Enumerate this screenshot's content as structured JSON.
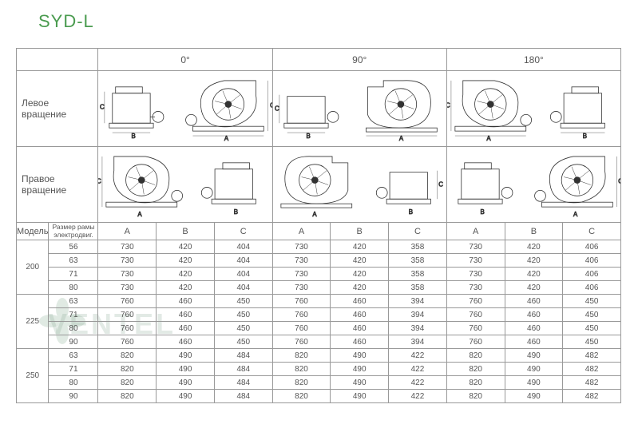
{
  "title": "SYD-L",
  "angle_headers": [
    "0°",
    "90°",
    "180°"
  ],
  "rotation_rows": [
    {
      "label": "Левое\nвращение"
    },
    {
      "label": "Правое\nвращение"
    }
  ],
  "model_header": "Модель",
  "frame_header": "Размер рамы\nэлектродвиг.",
  "abc_headers": [
    "A",
    "B",
    "C"
  ],
  "dim_labels": [
    "A",
    "B",
    "C"
  ],
  "watermark": "VENTEL",
  "models": [
    {
      "model": "200",
      "rows": [
        {
          "frame": "56",
          "vals": [
            "730",
            "420",
            "404",
            "730",
            "420",
            "358",
            "730",
            "420",
            "406"
          ]
        },
        {
          "frame": "63",
          "vals": [
            "730",
            "420",
            "404",
            "730",
            "420",
            "358",
            "730",
            "420",
            "406"
          ]
        },
        {
          "frame": "71",
          "vals": [
            "730",
            "420",
            "404",
            "730",
            "420",
            "358",
            "730",
            "420",
            "406"
          ]
        },
        {
          "frame": "80",
          "vals": [
            "730",
            "420",
            "404",
            "730",
            "420",
            "358",
            "730",
            "420",
            "406"
          ]
        }
      ]
    },
    {
      "model": "225",
      "rows": [
        {
          "frame": "63",
          "vals": [
            "760",
            "460",
            "450",
            "760",
            "460",
            "394",
            "760",
            "460",
            "450"
          ]
        },
        {
          "frame": "71",
          "vals": [
            "760",
            "460",
            "450",
            "760",
            "460",
            "394",
            "760",
            "460",
            "450"
          ]
        },
        {
          "frame": "80",
          "vals": [
            "760",
            "460",
            "450",
            "760",
            "460",
            "394",
            "760",
            "460",
            "450"
          ]
        },
        {
          "frame": "90",
          "vals": [
            "760",
            "460",
            "450",
            "760",
            "460",
            "394",
            "760",
            "460",
            "450"
          ]
        }
      ]
    },
    {
      "model": "250",
      "rows": [
        {
          "frame": "63",
          "vals": [
            "820",
            "490",
            "484",
            "820",
            "490",
            "422",
            "820",
            "490",
            "482"
          ]
        },
        {
          "frame": "71",
          "vals": [
            "820",
            "490",
            "484",
            "820",
            "490",
            "422",
            "820",
            "490",
            "482"
          ]
        },
        {
          "frame": "80",
          "vals": [
            "820",
            "490",
            "484",
            "820",
            "490",
            "422",
            "820",
            "490",
            "482"
          ]
        },
        {
          "frame": "90",
          "vals": [
            "820",
            "490",
            "484",
            "820",
            "490",
            "422",
            "820",
            "490",
            "482"
          ]
        }
      ]
    }
  ]
}
